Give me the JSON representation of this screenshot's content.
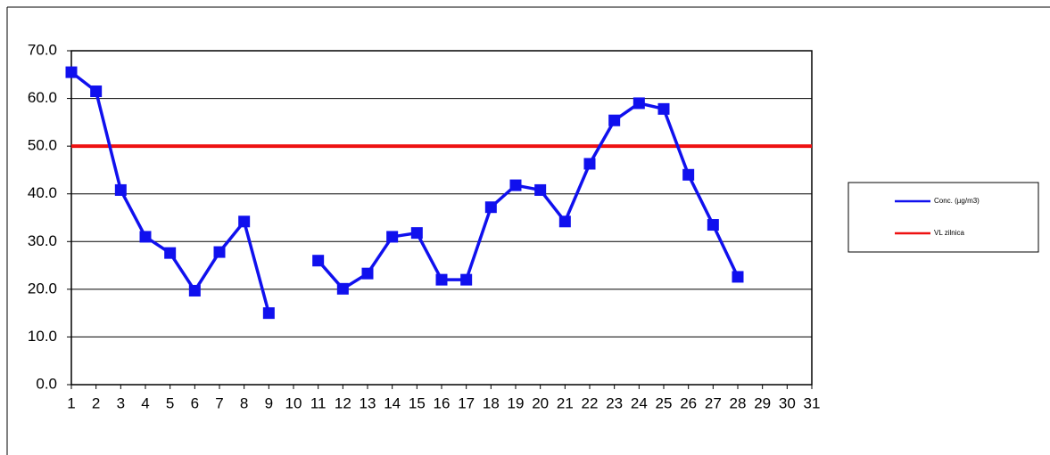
{
  "chart_data": {
    "type": "line",
    "categories": [
      "1",
      "2",
      "3",
      "4",
      "5",
      "6",
      "7",
      "8",
      "9",
      "10",
      "11",
      "12",
      "13",
      "14",
      "15",
      "16",
      "17",
      "18",
      "19",
      "20",
      "21",
      "22",
      "23",
      "24",
      "25",
      "26",
      "27",
      "28",
      "29",
      "30",
      "31"
    ],
    "series": [
      {
        "name": "Conc. (µg/m3)",
        "color": "#1010ee",
        "marker": "square",
        "values": [
          65.5,
          61.5,
          40.8,
          31.0,
          27.6,
          19.7,
          27.8,
          34.2,
          15.0,
          null,
          26.0,
          20.1,
          23.3,
          31.0,
          31.8,
          22.0,
          22.0,
          37.2,
          41.8,
          40.8,
          34.2,
          46.3,
          55.4,
          59.0,
          57.8,
          44.0,
          33.5,
          22.6,
          null,
          null,
          null
        ]
      },
      {
        "name": "VL zilnica",
        "color": "#ee1111",
        "values": [
          50,
          50,
          50,
          50,
          50,
          50,
          50,
          50,
          50,
          50,
          50,
          50,
          50,
          50,
          50,
          50,
          50,
          50,
          50,
          50,
          50,
          50,
          50,
          50,
          50,
          50,
          50,
          50,
          50,
          50,
          50
        ]
      }
    ],
    "ylim": [
      0,
      70
    ],
    "yticks": [
      {
        "value": 0,
        "label": "0.0"
      },
      {
        "value": 10,
        "label": "10.0"
      },
      {
        "value": 20,
        "label": "20.0"
      },
      {
        "value": 30,
        "label": "30.0"
      },
      {
        "value": 40,
        "label": "40.0"
      },
      {
        "value": 50,
        "label": "50.0"
      },
      {
        "value": 60,
        "label": "60.0"
      },
      {
        "value": 70,
        "label": "70.0"
      }
    ],
    "grid": true,
    "legend": "right"
  }
}
